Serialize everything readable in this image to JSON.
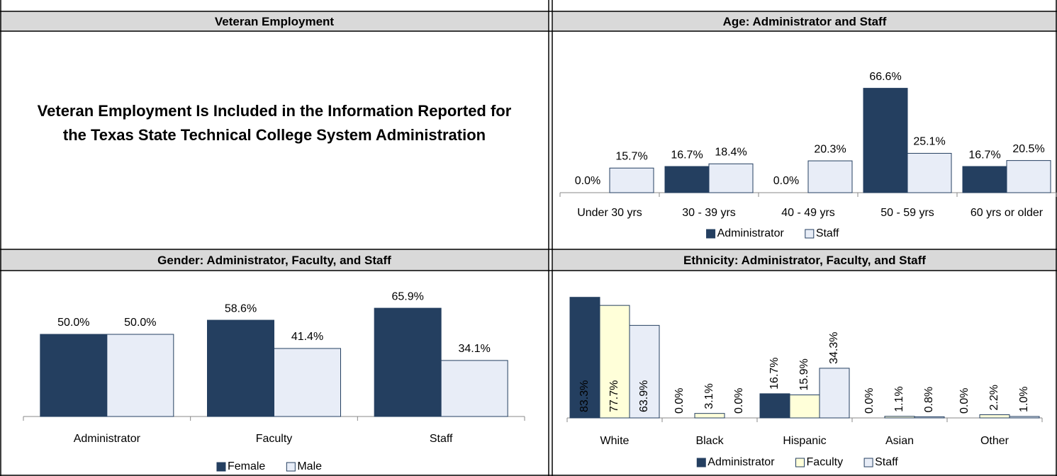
{
  "veteran": {
    "text": "Veteran Employment Is Included in the Information Reported for the Texas State Technical College System Administration"
  },
  "chart_data": [
    {
      "type": "bar",
      "title": "Veteran Employment",
      "role": "none"
    },
    {
      "type": "bar",
      "title": "Age: Administrator and Staff",
      "categories": [
        "Under 30 yrs",
        "30 - 39 yrs",
        "40 - 49 yrs",
        "50 - 59 yrs",
        "60 yrs or older"
      ],
      "series": [
        {
          "name": "Administrator",
          "color": "#243f60",
          "values": [
            0,
            16.7,
            0,
            66.6,
            16.7
          ],
          "value_labels": [
            "0.0%",
            "16.7%",
            "0.0%",
            "66.6%",
            "16.7%"
          ]
        },
        {
          "name": "Staff",
          "color": "#e8edf7",
          "values": [
            15.7,
            18.4,
            20.3,
            25.1,
            20.5
          ],
          "value_labels": [
            "15.7%",
            "18.4%",
            "20.3%",
            "25.1%",
            "20.5%"
          ]
        }
      ],
      "ylim": [
        0,
        75
      ],
      "legend": "bottom"
    },
    {
      "type": "bar",
      "title": "Gender: Administrator, Faculty, and Staff",
      "categories": [
        "Administrator",
        "Faculty",
        "Staff"
      ],
      "series": [
        {
          "name": "Female",
          "color": "#243f60",
          "values": [
            50.0,
            58.6,
            65.9
          ],
          "value_labels": [
            "50.0%",
            "58.6%",
            "65.9%"
          ]
        },
        {
          "name": "Male",
          "color": "#e8edf7",
          "values": [
            50.0,
            41.4,
            34.1
          ],
          "value_labels": [
            "50.0%",
            "41.4%",
            "34.1%"
          ]
        }
      ],
      "ylim": [
        0,
        75
      ],
      "legend": "bottom"
    },
    {
      "type": "bar",
      "title": "Ethnicity: Administrator, Faculty, and Staff",
      "categories": [
        "White",
        "Black",
        "Hispanic",
        "Asian",
        "Other"
      ],
      "series": [
        {
          "name": "Administrator",
          "color": "#243f60",
          "values": [
            83.3,
            0,
            16.7,
            0,
            0
          ],
          "value_labels": [
            "83.3%",
            "0.0%",
            "16.7%",
            "0.0%",
            "0.0%"
          ]
        },
        {
          "name": "Faculty",
          "color": "#ffffd9",
          "values": [
            77.7,
            3.1,
            15.9,
            1.1,
            2.2
          ],
          "value_labels": [
            "77.7%",
            "3.1%",
            "15.9%",
            "1.1%",
            "2.2%"
          ]
        },
        {
          "name": "Staff",
          "color": "#e8edf7",
          "values": [
            63.9,
            0,
            34.3,
            0.8,
            1.0
          ],
          "value_labels": [
            "63.9%",
            "0.0%",
            "34.3%",
            "0.8%",
            "1.0%"
          ]
        }
      ],
      "ylim": [
        0,
        90
      ],
      "legend": "bottom",
      "rotated_labels": true
    }
  ]
}
